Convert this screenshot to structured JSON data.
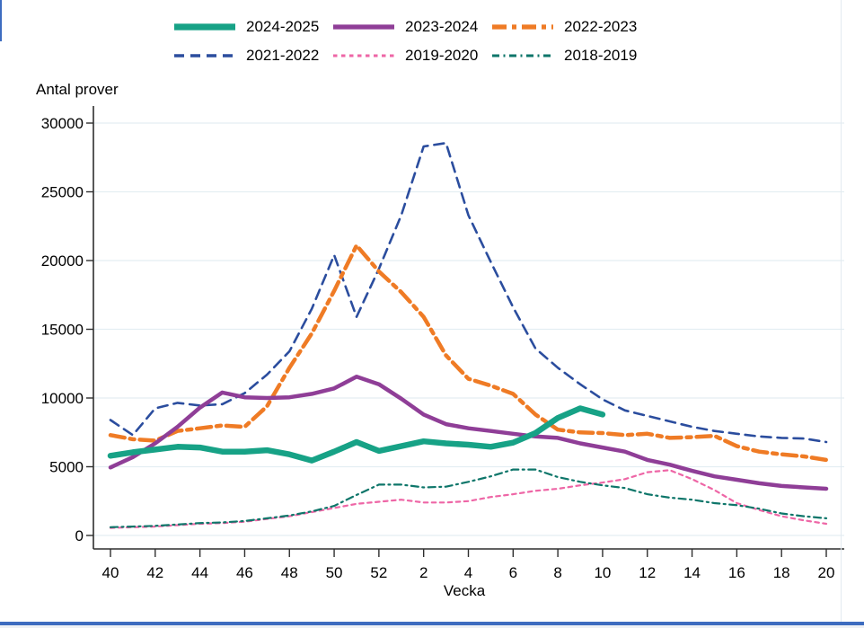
{
  "window": {
    "accent_color": "#3d6cc0",
    "pad_color": "#edf0f5"
  },
  "chart_data": {
    "type": "line",
    "title": "",
    "ylabel": "Antal prover",
    "xlabel": "Vecka",
    "ylim": [
      0,
      30000
    ],
    "yticks": [
      0,
      5000,
      10000,
      15000,
      20000,
      25000,
      30000
    ],
    "grid": true,
    "legend_position": "top",
    "colors": {
      "grid": "#e4eef2",
      "axis": "#2e2e2e",
      "text": "#000000",
      "background": "#ffffff"
    },
    "x_categories": [
      "40",
      "41",
      "42",
      "43",
      "44",
      "45",
      "46",
      "47",
      "48",
      "49",
      "50",
      "51",
      "52",
      "1",
      "2",
      "3",
      "4",
      "5",
      "6",
      "7",
      "8",
      "9",
      "10",
      "11",
      "12",
      "13",
      "14",
      "15",
      "16",
      "17",
      "18",
      "19",
      "20"
    ],
    "draw_order": [
      3,
      4,
      5,
      2,
      1,
      0
    ],
    "series": [
      {
        "name": "2024-2025",
        "color": "#17a286",
        "style": "solid",
        "width": 6.5,
        "values": [
          5800,
          6050,
          6250,
          6450,
          6400,
          6100,
          6100,
          6200,
          5900,
          5450,
          6100,
          6800,
          6150,
          6500,
          6850,
          6700,
          6600,
          6450,
          6750,
          7450,
          8550,
          9250,
          8800
        ]
      },
      {
        "name": "2023-2024",
        "color": "#8f3e97",
        "style": "solid",
        "width": 4.5,
        "values": [
          4950,
          5700,
          6700,
          7900,
          9300,
          10400,
          10050,
          10000,
          10050,
          10300,
          10700,
          11550,
          11000,
          9950,
          8800,
          8100,
          7800,
          7600,
          7400,
          7200,
          7100,
          6700,
          6400,
          6100,
          5500,
          5150,
          4700,
          4300,
          4050,
          3800,
          3600,
          3500,
          3400
        ]
      },
      {
        "name": "2022-2023",
        "color": "#ef7b25",
        "style": "dashdotlong",
        "width": 4.5,
        "values": [
          7300,
          7000,
          6900,
          7600,
          7800,
          8000,
          7900,
          9400,
          12200,
          14700,
          17800,
          21100,
          19200,
          17700,
          15900,
          13100,
          11400,
          10900,
          10300,
          8800,
          7700,
          7500,
          7450,
          7300,
          7400,
          7100,
          7150,
          7250,
          6500,
          6100,
          5900,
          5750,
          5500
        ]
      },
      {
        "name": "2021-2022",
        "color": "#2b4d9e",
        "style": "dash",
        "width": 2.6,
        "values": [
          8400,
          7300,
          9250,
          9650,
          9450,
          9550,
          10350,
          11700,
          13400,
          16500,
          20400,
          15900,
          19400,
          23300,
          28300,
          28550,
          23300,
          19900,
          16600,
          13600,
          12200,
          11000,
          9900,
          9100,
          8700,
          8300,
          7900,
          7600,
          7400,
          7200,
          7100,
          7050,
          6800
        ]
      },
      {
        "name": "2019-2020",
        "color": "#ee66a6",
        "style": "dot",
        "width": 2.2,
        "values": [
          550,
          600,
          650,
          750,
          850,
          900,
          1000,
          1200,
          1400,
          1700,
          2000,
          2300,
          2450,
          2600,
          2400,
          2400,
          2500,
          2800,
          3000,
          3250,
          3400,
          3650,
          3850,
          4100,
          4600,
          4750,
          4100,
          3300,
          2350,
          1850,
          1400,
          1100,
          850
        ]
      },
      {
        "name": "2018-2019",
        "color": "#0e766a",
        "style": "dashdotshort",
        "width": 2.2,
        "values": [
          600,
          650,
          700,
          800,
          900,
          950,
          1050,
          1250,
          1450,
          1750,
          2150,
          2950,
          3700,
          3700,
          3500,
          3550,
          3900,
          4300,
          4800,
          4800,
          4250,
          3900,
          3650,
          3450,
          3000,
          2750,
          2600,
          2350,
          2200,
          1950,
          1600,
          1400,
          1250
        ]
      }
    ]
  }
}
